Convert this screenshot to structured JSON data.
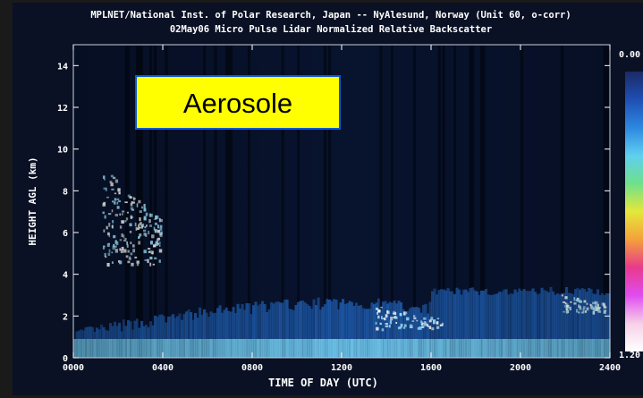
{
  "chart_data": {
    "type": "heatmap",
    "title": "MPLNET/National Inst. of Polar Research, Japan -- NyAlesund, Norway (Unit 60, o-corr)",
    "subtitle": "02May06 Micro Pulse Lidar Normalized Relative Backscatter",
    "xlabel": "TIME OF DAY (UTC)",
    "ylabel": "HEIGHT AGL (km)",
    "x_ticks": [
      "0000",
      "0400",
      "0800",
      "1200",
      "1600",
      "2000",
      "2400"
    ],
    "y_ticks": [
      "0",
      "2",
      "4",
      "6",
      "8",
      "10",
      "12",
      "14"
    ],
    "xlim_hours": [
      0,
      24
    ],
    "ylim_km": [
      0,
      15
    ],
    "colorbar": {
      "min_label": "0.00",
      "max_label": "1.20",
      "stops": [
        "#1b2a66",
        "#1f4fb3",
        "#2d87e0",
        "#5fd0f0",
        "#6fe08a",
        "#e4e83a",
        "#f5a03a",
        "#e83a8c",
        "#e04cf0",
        "#f7d0e8",
        "#ffffff"
      ]
    },
    "annotation": "Aerosole",
    "features": [
      {
        "name": "boundary layer aerosol",
        "x_hours": [
          0,
          24
        ],
        "top_km": [
          0.8,
          3.3
        ]
      },
      {
        "name": "cirrus cloud",
        "x_hours": [
          1.3,
          3.9
        ],
        "base_km": 4.5,
        "top_km": 9.3
      },
      {
        "name": "low cloud",
        "x_hours": [
          13.5,
          16.5
        ],
        "base_km": 1.4,
        "top_km": 2.5
      },
      {
        "name": "low cloud",
        "x_hours": [
          21.8,
          23.8
        ],
        "base_km": 2.2,
        "top_km": 3.1
      }
    ]
  },
  "colors": {
    "background": "#ffffff",
    "panel": "#0a1124",
    "axes_text": "#ffffff",
    "frame": "#1a1a1a",
    "callout_fill": "#ffff00",
    "callout_border": "#0a5ad4"
  }
}
